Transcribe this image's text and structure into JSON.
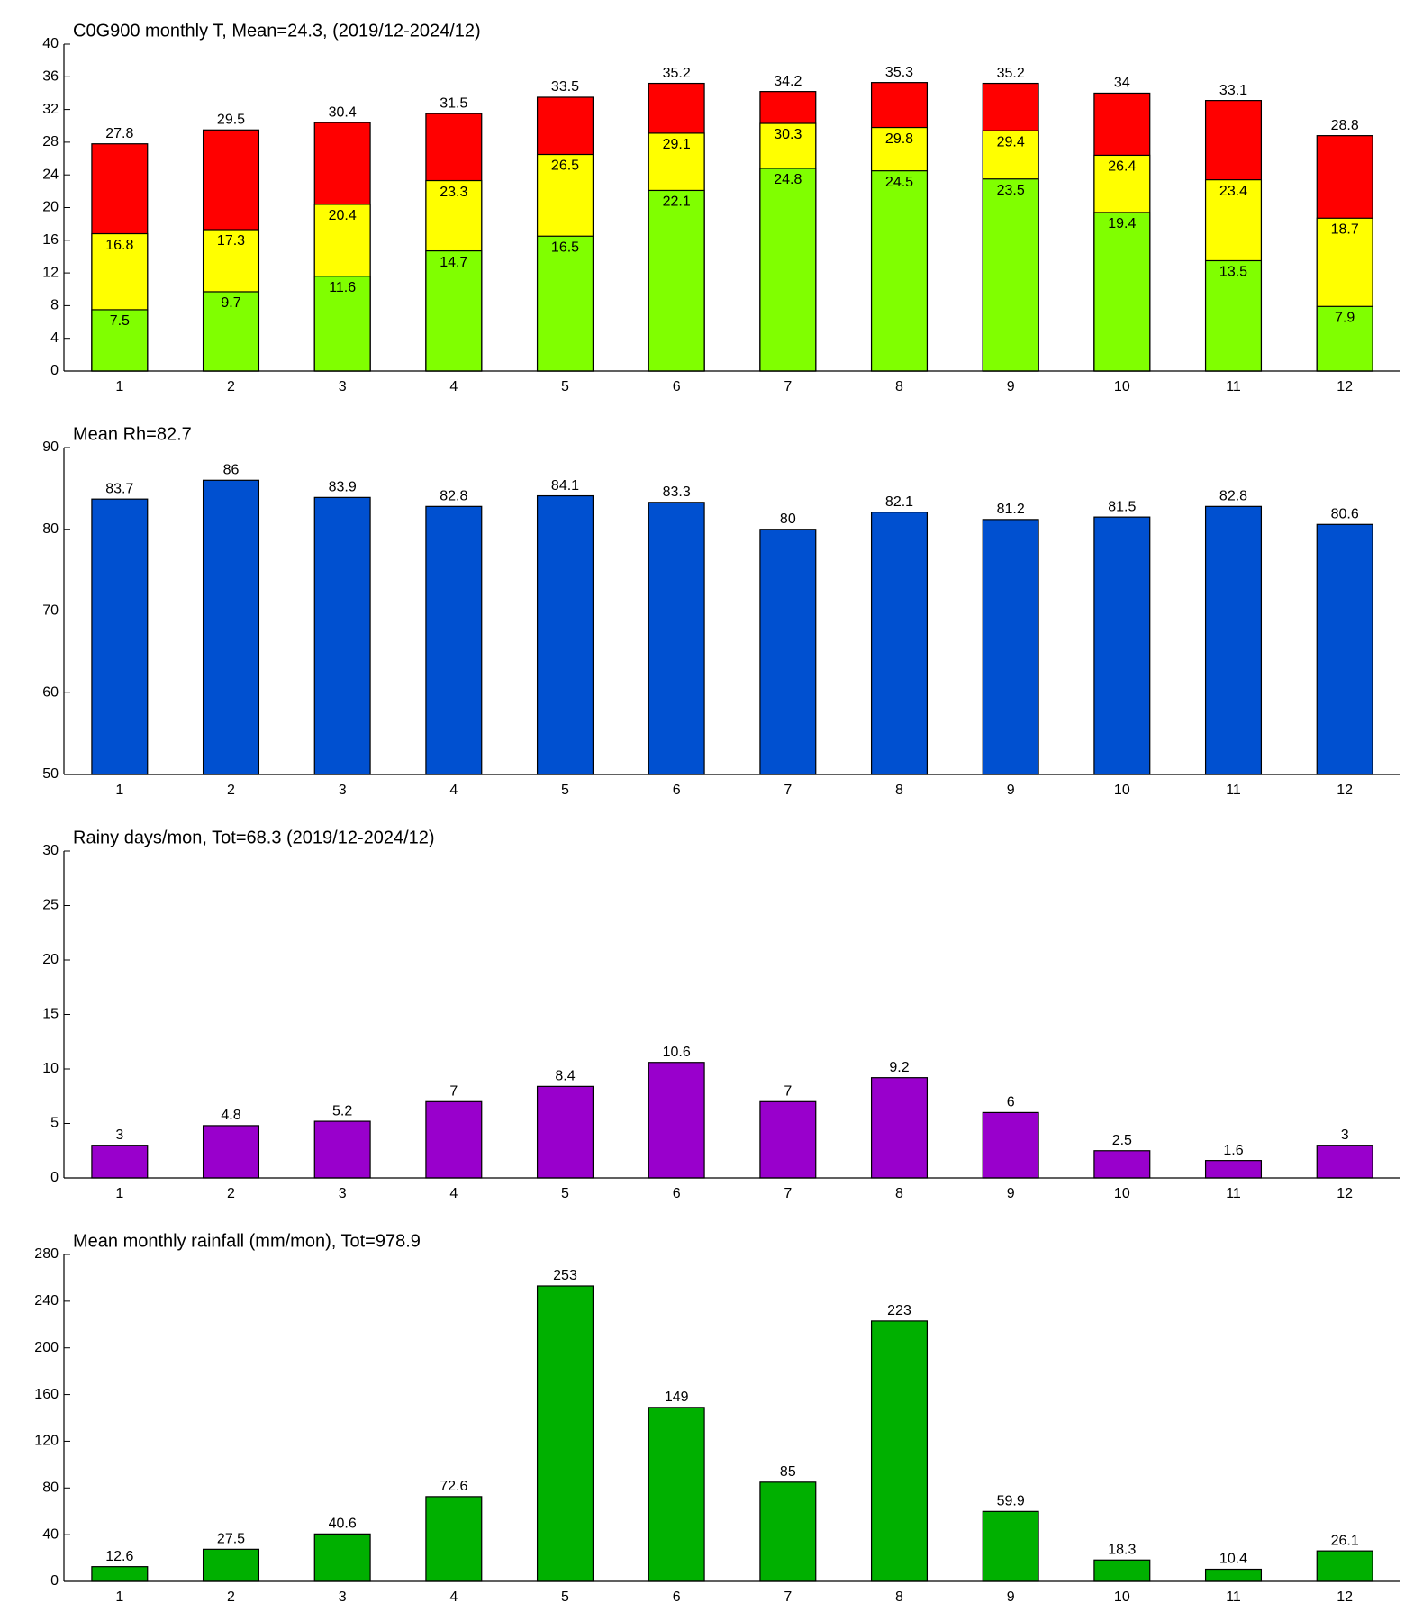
{
  "chart_data": [
    {
      "type": "bar",
      "title": "C0G900 monthly T, Mean=24.3, (2019/12-2024/12)",
      "categories": [
        "1",
        "2",
        "3",
        "4",
        "5",
        "6",
        "7",
        "8",
        "9",
        "10",
        "11",
        "12"
      ],
      "series": [
        {
          "color": "#ff0000",
          "values": [
            27.8,
            29.5,
            30.4,
            31.5,
            33.5,
            35.2,
            34.2,
            35.3,
            35.2,
            34,
            33.1,
            28.8
          ]
        },
        {
          "color": "#ffff00",
          "values": [
            16.8,
            17.3,
            20.4,
            23.3,
            26.5,
            29.1,
            30.3,
            29.8,
            29.4,
            26.4,
            23.4,
            18.7
          ]
        },
        {
          "color": "#80ff00",
          "values": [
            7.5,
            9.7,
            11.6,
            14.7,
            16.5,
            22.1,
            24.8,
            24.5,
            23.5,
            19.4,
            13.5,
            7.9
          ]
        }
      ],
      "ylim": [
        0,
        40
      ],
      "yticks": [
        0,
        4,
        8,
        12,
        16,
        20,
        24,
        28,
        32,
        36,
        40
      ]
    },
    {
      "type": "bar",
      "title": "Mean Rh=82.7",
      "categories": [
        "1",
        "2",
        "3",
        "4",
        "5",
        "6",
        "7",
        "8",
        "9",
        "10",
        "11",
        "12"
      ],
      "series": [
        {
          "color": "#0050d0",
          "values": [
            83.7,
            86,
            83.9,
            82.8,
            84.1,
            83.3,
            80,
            82.1,
            81.2,
            81.5,
            82.8,
            80.6
          ]
        }
      ],
      "ylim": [
        50,
        90
      ],
      "yticks": [
        50,
        60,
        70,
        80,
        90
      ]
    },
    {
      "type": "bar",
      "title": "Rainy days/mon, Tot=68.3 (2019/12-2024/12)",
      "categories": [
        "1",
        "2",
        "3",
        "4",
        "5",
        "6",
        "7",
        "8",
        "9",
        "10",
        "11",
        "12"
      ],
      "series": [
        {
          "color": "#9900cc",
          "values": [
            3,
            4.8,
            5.2,
            7,
            8.4,
            10.6,
            7,
            9.2,
            6,
            2.5,
            1.6,
            3
          ]
        }
      ],
      "ylim": [
        0,
        30
      ],
      "yticks": [
        0,
        5,
        10,
        15,
        20,
        25,
        30
      ]
    },
    {
      "type": "bar",
      "title": "Mean monthly rainfall (mm/mon), Tot=978.9",
      "categories": [
        "1",
        "2",
        "3",
        "4",
        "5",
        "6",
        "7",
        "8",
        "9",
        "10",
        "11",
        "12"
      ],
      "series": [
        {
          "color": "#00b000",
          "values": [
            12.6,
            27.5,
            40.6,
            72.6,
            253,
            149,
            85,
            223,
            59.9,
            18.3,
            10.4,
            26.1
          ]
        }
      ],
      "ylim": [
        0,
        280
      ],
      "yticks": [
        0,
        40,
        80,
        120,
        160,
        200,
        240,
        280
      ]
    }
  ]
}
